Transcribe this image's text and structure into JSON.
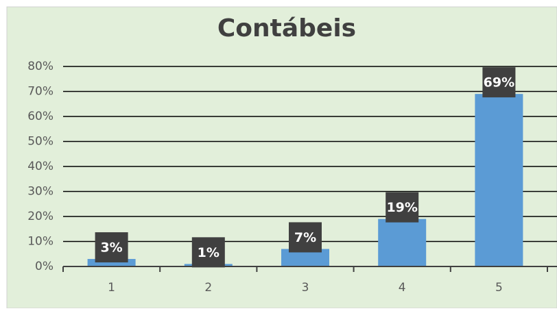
{
  "chart_data": {
    "type": "bar",
    "title": "Contábeis",
    "categories": [
      "1",
      "2",
      "3",
      "4",
      "5"
    ],
    "values": [
      3,
      1,
      7,
      19,
      69
    ],
    "value_labels": [
      "3%",
      "1%",
      "7%",
      "19%",
      "69%"
    ],
    "color": "#5b9bd5",
    "ylim": [
      0,
      80
    ],
    "yticks": [
      {
        "value": 0,
        "label": "0%"
      },
      {
        "value": 10,
        "label": "10%"
      },
      {
        "value": 20,
        "label": "20%"
      },
      {
        "value": 30,
        "label": "30%"
      },
      {
        "value": 40,
        "label": "40%"
      },
      {
        "value": 50,
        "label": "50%"
      },
      {
        "value": 60,
        "label": "60%"
      },
      {
        "value": 70,
        "label": "70%"
      },
      {
        "value": 80,
        "label": "80%"
      }
    ],
    "grid": true
  }
}
